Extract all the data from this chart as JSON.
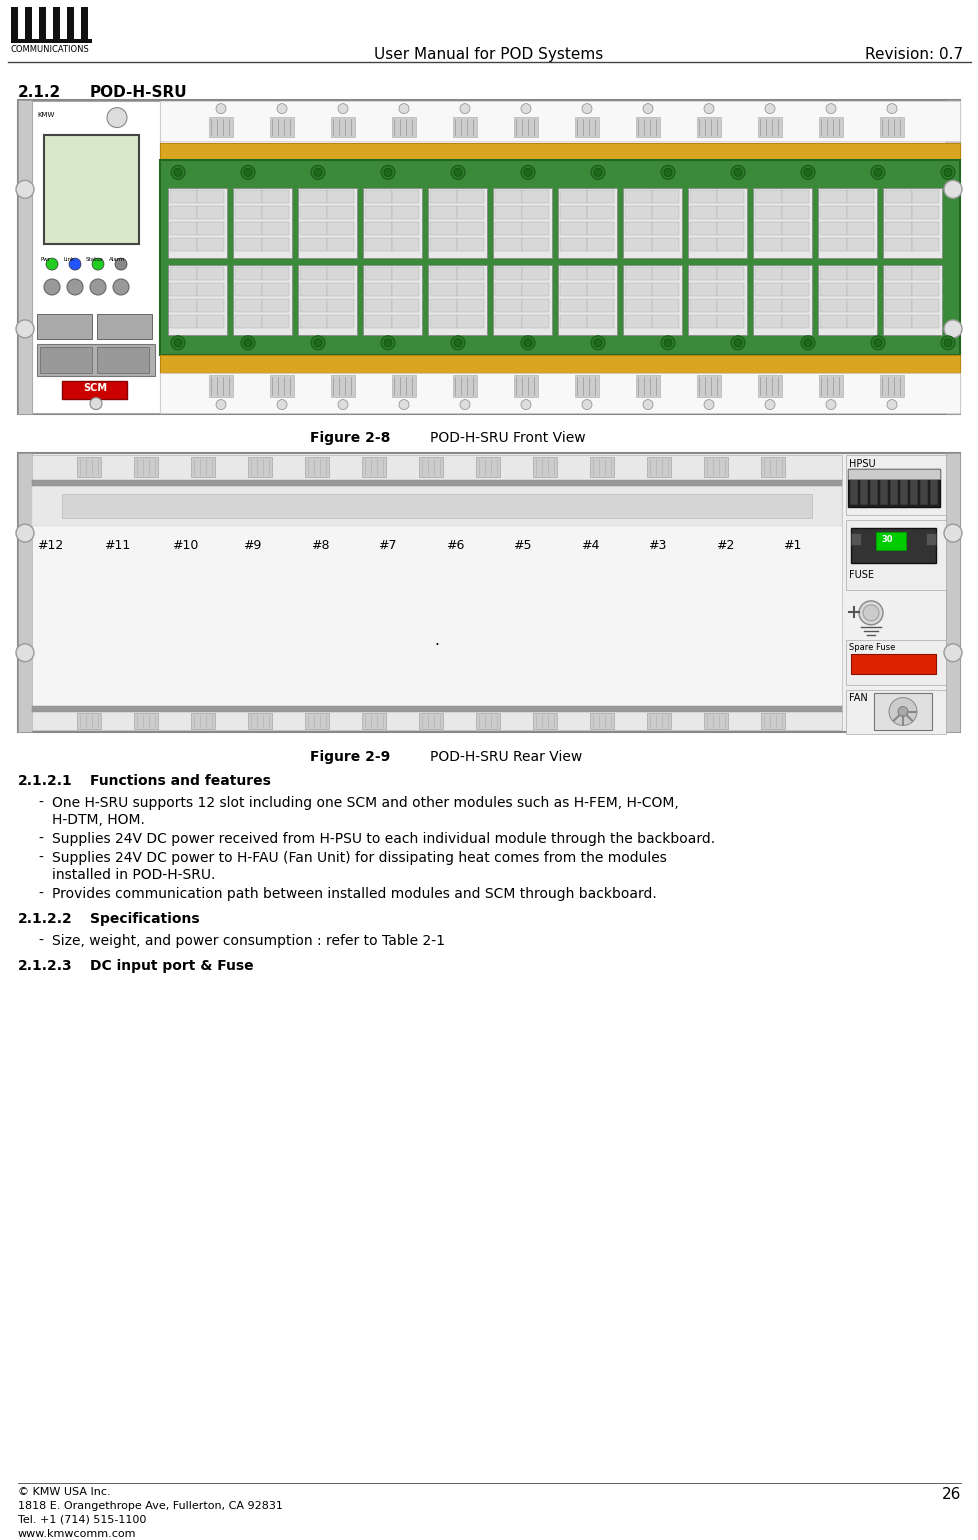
{
  "title": "User Manual for POD Systems",
  "revision": "Revision: 0.7",
  "section": "2.1.2",
  "section_title": "POD-H-SRU",
  "fig8_caption": "Figure 2-8",
  "fig8_title": "POD-H-SRU Front View",
  "fig9_caption": "Figure 2-9",
  "fig9_title": "POD-H-SRU Rear View",
  "subsection1": "2.1.2.1",
  "subsection1_title": "Functions and features",
  "bullets1": [
    "One H-SRU supports 12 slot including one SCM and other modules such as H-FEM, H-COM, H-DTM, HOM.",
    "Supplies 24V DC power received from H-PSU to each individual module through the backboard.",
    "Supplies 24V DC power to H-FAU (Fan Unit) for dissipating heat comes from the modules installed in POD-H-SRU.",
    "Provides communication path between installed modules and SCM through backboard."
  ],
  "subsection2": "2.1.2.2",
  "subsection2_title": "Specifications",
  "bullets2": [
    "Size, weight, and power consumption : refer to Table 2-1"
  ],
  "subsection3": "2.1.2.3",
  "subsection3_title": "DC input port & Fuse",
  "footer_line1": "© KMW USA Inc.",
  "footer_line2": "1818 E. Orangethrope Ave, Fullerton, CA 92831",
  "footer_line3": "Tel. +1 (714) 515-1100",
  "footer_line4": "www.kmwcomm.com",
  "page_number": "26",
  "slot_labels": [
    "#12",
    "#11",
    "#10",
    "#9",
    "#8",
    "#7",
    "#6",
    "#5",
    "#4",
    "#3",
    "#2",
    "#1"
  ],
  "bg_color": "#ffffff",
  "green_color": "#3a8a3a",
  "gold_color": "#DAA520",
  "scm_green_bg": "#d8e8c8",
  "scm_red": "#CC0000",
  "connector_green": "#229922",
  "fuse_green": "#00aa00"
}
